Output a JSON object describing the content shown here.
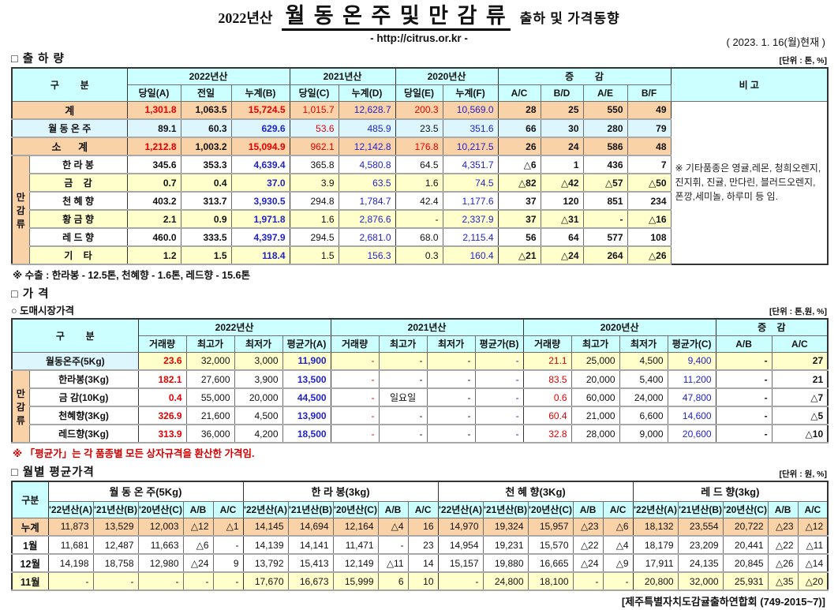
{
  "header": {
    "year_prefix": "2022년산",
    "title": "월 동 온 주 및 만 감 류",
    "subtitle": "출하 및 가격동향",
    "url": "- http://citrus.or.kr -",
    "date": "( 2023. 1. 16(월)현재 )"
  },
  "shipment": {
    "section_title": "□ 출 하 량",
    "unit": "[단위 : 톤, %]",
    "corner": "구        분",
    "groups": [
      "2022년산",
      "2021년산",
      "2020년산",
      "증        감"
    ],
    "remarks_header": "비 고",
    "sub_headers": [
      "당일(A)",
      "전일",
      "누계(B)",
      "당일(C)",
      "누계(D)",
      "당일(E)",
      "누계(F)",
      "A/C",
      "B/D",
      "A/E",
      "B/F"
    ],
    "vertical_label": "만감류",
    "rows": [
      {
        "label": "계",
        "bg": "peach",
        "total": true,
        "cells": [
          [
            "1,301.8",
            "r"
          ],
          [
            "1,063.5",
            "k"
          ],
          [
            "15,724.5",
            "r"
          ],
          [
            "1,015.7",
            "r"
          ],
          [
            "12,628.7",
            "b"
          ],
          [
            "200.3",
            "r"
          ],
          [
            "10,569.0",
            "b"
          ],
          [
            "28",
            "k"
          ],
          [
            "25",
            "k"
          ],
          [
            "550",
            "k"
          ],
          [
            "49",
            "k"
          ]
        ]
      },
      {
        "label": "월 동 온 주",
        "bg": "cyanrow",
        "total": false,
        "cells": [
          [
            "89.1",
            "k"
          ],
          [
            "60.3",
            "k"
          ],
          [
            "629.6",
            "b"
          ],
          [
            "53.6",
            "r"
          ],
          [
            "485.9",
            "b"
          ],
          [
            "23.5",
            "k"
          ],
          [
            "351.6",
            "b"
          ],
          [
            "66",
            "k"
          ],
          [
            "30",
            "k"
          ],
          [
            "280",
            "k"
          ],
          [
            "79",
            "k"
          ]
        ]
      },
      {
        "label": "소      계",
        "bg": "peach",
        "total": true,
        "cells": [
          [
            "1,212.8",
            "r"
          ],
          [
            "1,003.2",
            "k"
          ],
          [
            "15,094.9",
            "r"
          ],
          [
            "962.1",
            "r"
          ],
          [
            "12,142.8",
            "b"
          ],
          [
            "176.8",
            "r"
          ],
          [
            "10,217.5",
            "b"
          ],
          [
            "26",
            "k"
          ],
          [
            "24",
            "k"
          ],
          [
            "586",
            "k"
          ],
          [
            "48",
            "k"
          ]
        ]
      },
      {
        "label": "한 라 봉",
        "bg": "white",
        "cells": [
          [
            "345.6",
            "k"
          ],
          [
            "353.3",
            "k"
          ],
          [
            "4,639.4",
            "b"
          ],
          [
            "365.8",
            "k"
          ],
          [
            "4,580.8",
            "b"
          ],
          [
            "64.5",
            "k"
          ],
          [
            "4,351.7",
            "b"
          ],
          [
            "△6",
            "k"
          ],
          [
            "1",
            "k"
          ],
          [
            "436",
            "k"
          ],
          [
            "7",
            "k"
          ]
        ]
      },
      {
        "label": "금    감",
        "bg": "yellow",
        "cells": [
          [
            "0.7",
            "k"
          ],
          [
            "0.4",
            "k"
          ],
          [
            "37.0",
            "b"
          ],
          [
            "3.9",
            "k"
          ],
          [
            "63.5",
            "b"
          ],
          [
            "1.6",
            "k"
          ],
          [
            "74.5",
            "b"
          ],
          [
            "△82",
            "k"
          ],
          [
            "△42",
            "k"
          ],
          [
            "△57",
            "k"
          ],
          [
            "△50",
            "k"
          ]
        ]
      },
      {
        "label": "천 혜 향",
        "bg": "white",
        "cells": [
          [
            "403.2",
            "k"
          ],
          [
            "313.7",
            "k"
          ],
          [
            "3,930.5",
            "b"
          ],
          [
            "294.8",
            "k"
          ],
          [
            "1,784.7",
            "b"
          ],
          [
            "42.4",
            "k"
          ],
          [
            "1,177.6",
            "b"
          ],
          [
            "37",
            "k"
          ],
          [
            "120",
            "k"
          ],
          [
            "851",
            "k"
          ],
          [
            "234",
            "k"
          ]
        ]
      },
      {
        "label": "황 금 향",
        "bg": "yellow",
        "cells": [
          [
            "2.1",
            "k"
          ],
          [
            "0.9",
            "k"
          ],
          [
            "1,971.8",
            "b"
          ],
          [
            "1.6",
            "k"
          ],
          [
            "2,876.6",
            "b"
          ],
          [
            "-",
            "k"
          ],
          [
            "2,337.9",
            "b"
          ],
          [
            "37",
            "k"
          ],
          [
            "△31",
            "k"
          ],
          [
            "-",
            "k"
          ],
          [
            "△16",
            "k"
          ]
        ]
      },
      {
        "label": "레 드 향",
        "bg": "white",
        "cells": [
          [
            "460.0",
            "k"
          ],
          [
            "333.5",
            "k"
          ],
          [
            "4,397.9",
            "b"
          ],
          [
            "294.5",
            "k"
          ],
          [
            "2,681.0",
            "b"
          ],
          [
            "68.0",
            "k"
          ],
          [
            "2,115.4",
            "b"
          ],
          [
            "56",
            "k"
          ],
          [
            "64",
            "k"
          ],
          [
            "577",
            "k"
          ],
          [
            "108",
            "k"
          ]
        ]
      },
      {
        "label": "기    타",
        "bg": "yellow",
        "cells": [
          [
            "1.2",
            "k"
          ],
          [
            "1.5",
            "k"
          ],
          [
            "118.4",
            "b"
          ],
          [
            "1.5",
            "k"
          ],
          [
            "156.3",
            "b"
          ],
          [
            "0.3",
            "k"
          ],
          [
            "160.4",
            "b"
          ],
          [
            "△21",
            "k"
          ],
          [
            "△24",
            "k"
          ],
          [
            "264",
            "k"
          ],
          [
            "△26",
            "k"
          ]
        ]
      }
    ],
    "remarks": "※ 기타품종은 영귤,레몬, 청희오렌지, 진지휘, 진귤, 만다린, 블러드오렌지, 폰깡,세미놀, 하루미 등 임.",
    "export_note": "※ 수출 : 한라봉 - 12.5톤, 천혜향 - 1.6톤, 레드향 - 15.6톤"
  },
  "price": {
    "section_title": "□ 가      격",
    "sub_section_title": "○ 도매시장가격",
    "unit": "[단위 : 톤,원, %]",
    "corner": "구        분",
    "groups": [
      "2022년산",
      "2021년산",
      "2020년산",
      "증    감"
    ],
    "sub_headers": [
      "거래량",
      "최고가",
      "최저가",
      "평균가(A)",
      "거래량",
      "최고가",
      "최저가",
      "평균가(B)",
      "거래량",
      "최고가",
      "최저가",
      "평균가(C)",
      "A/B",
      "A/C"
    ],
    "vertical_label": "만감류",
    "rows": [
      {
        "label": "월동온주(5Kg)",
        "bg": "yellow",
        "label_bg": "cyanrow",
        "cells": [
          [
            "23.6",
            "r"
          ],
          [
            "32,000",
            "k"
          ],
          [
            "3,000",
            "k"
          ],
          [
            "11,900",
            "b"
          ],
          [
            "-",
            "r"
          ],
          [
            "-",
            "k"
          ],
          [
            "-",
            "k"
          ],
          [
            "-",
            "b"
          ],
          [
            "21.1",
            "r"
          ],
          [
            "25,000",
            "k"
          ],
          [
            "4,500",
            "k"
          ],
          [
            "9,400",
            "b"
          ],
          [
            "-",
            "k"
          ],
          [
            "27",
            "k"
          ]
        ]
      },
      {
        "label": "한라봉(3Kg)",
        "bg": "white",
        "cells": [
          [
            "182.1",
            "r"
          ],
          [
            "27,600",
            "k"
          ],
          [
            "3,900",
            "k"
          ],
          [
            "13,500",
            "b"
          ],
          [
            "-",
            "r"
          ],
          [
            "-",
            "k"
          ],
          [
            "-",
            "k"
          ],
          [
            "-",
            "b"
          ],
          [
            "83.5",
            "r"
          ],
          [
            "20,000",
            "k"
          ],
          [
            "5,400",
            "k"
          ],
          [
            "11,200",
            "b"
          ],
          [
            "-",
            "k"
          ],
          [
            "21",
            "k"
          ]
        ]
      },
      {
        "label": "금 감(10Kg)",
        "bg": "white",
        "cells": [
          [
            "0.4",
            "r"
          ],
          [
            "55,000",
            "k"
          ],
          [
            "20,000",
            "k"
          ],
          [
            "44,500",
            "b"
          ],
          [
            "-",
            "r"
          ],
          [
            "일요일",
            "k"
          ],
          [
            "-",
            "k"
          ],
          [
            "-",
            "b"
          ],
          [
            "0.6",
            "r"
          ],
          [
            "60,000",
            "k"
          ],
          [
            "24,000",
            "k"
          ],
          [
            "47,800",
            "b"
          ],
          [
            "-",
            "k"
          ],
          [
            "△7",
            "k"
          ]
        ]
      },
      {
        "label": "천혜향(3Kg)",
        "bg": "white",
        "cells": [
          [
            "326.9",
            "r"
          ],
          [
            "21,600",
            "k"
          ],
          [
            "4,500",
            "k"
          ],
          [
            "13,900",
            "b"
          ],
          [
            "-",
            "r"
          ],
          [
            "-",
            "k"
          ],
          [
            "-",
            "k"
          ],
          [
            "-",
            "b"
          ],
          [
            "60.4",
            "r"
          ],
          [
            "21,000",
            "k"
          ],
          [
            "6,600",
            "k"
          ],
          [
            "14,600",
            "b"
          ],
          [
            "-",
            "k"
          ],
          [
            "△5",
            "k"
          ]
        ]
      },
      {
        "label": "레드향(3Kg)",
        "bg": "white",
        "cells": [
          [
            "313.9",
            "r"
          ],
          [
            "36,000",
            "k"
          ],
          [
            "4,200",
            "k"
          ],
          [
            "18,500",
            "b"
          ],
          [
            "-",
            "r"
          ],
          [
            "-",
            "k"
          ],
          [
            "-",
            "k"
          ],
          [
            "-",
            "b"
          ],
          [
            "32.8",
            "r"
          ],
          [
            "28,000",
            "k"
          ],
          [
            "9,000",
            "k"
          ],
          [
            "20,600",
            "b"
          ],
          [
            "-",
            "k"
          ],
          [
            "△10",
            "k"
          ]
        ]
      }
    ],
    "note": "※ 「평균가」는 각 품종별 모든 상자규격을 환산한 가격임."
  },
  "monthly": {
    "section_title": "□ 월별 평균가격",
    "unit": "[단위 : 원, %]",
    "corner": "구분",
    "groups": [
      "월 동 온 주(5Kg)",
      "한 라 봉(3kg)",
      "천 혜 향(3Kg)",
      "레 드 향(3kg)"
    ],
    "sub_headers": [
      "'22년산(A)",
      "'21년산(B)",
      "'20년산(C)",
      "A/B",
      "A/C"
    ],
    "rows": [
      {
        "label": "누계",
        "bg": "peach",
        "cells": [
          "11,873",
          "13,529",
          "12,003",
          "△12",
          "△1",
          "14,145",
          "14,694",
          "12,164",
          "△4",
          "16",
          "14,970",
          "19,324",
          "15,957",
          "△23",
          "△6",
          "18,132",
          "23,554",
          "20,722",
          "△23",
          "△12"
        ]
      },
      {
        "label": "1월",
        "bg": "white",
        "cells": [
          "11,681",
          "12,487",
          "11,663",
          "△6",
          "-",
          "14,139",
          "14,141",
          "11,471",
          "-",
          "23",
          "14,954",
          "19,231",
          "15,570",
          "△22",
          "△4",
          "18,179",
          "23,209",
          "20,441",
          "△22",
          "△11"
        ]
      },
      {
        "label": "12월",
        "bg": "white",
        "cells": [
          "14,198",
          "18,758",
          "12,980",
          "△24",
          "9",
          "13,792",
          "15,413",
          "12,149",
          "△11",
          "14",
          "15,157",
          "19,880",
          "16,665",
          "△24",
          "△9",
          "17,911",
          "24,135",
          "20,845",
          "△26",
          "△14"
        ]
      },
      {
        "label": "11월",
        "bg": "yellow",
        "cells": [
          "-",
          "-",
          "-",
          "-",
          "-",
          "17,670",
          "16,673",
          "15,999",
          "6",
          "10",
          "-",
          "24,800",
          "18,100",
          "-",
          "-",
          "20,800",
          "32,000",
          "25,931",
          "△35",
          "△20"
        ]
      }
    ]
  },
  "footer": "[제주특별자치도감귤출하연합회 (749-2015~7)]"
}
